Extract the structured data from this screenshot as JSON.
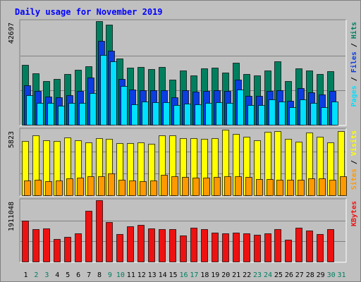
{
  "chart_data": {
    "type": "bar",
    "title": "Daily usage for November 2019",
    "categories": [
      "1",
      "2",
      "3",
      "4",
      "5",
      "6",
      "7",
      "8",
      "9",
      "10",
      "11",
      "12",
      "13",
      "14",
      "15",
      "16",
      "17",
      "18",
      "19",
      "20",
      "21",
      "22",
      "23",
      "24",
      "25",
      "26",
      "27",
      "28",
      "29",
      "30",
      "31"
    ],
    "weekend_days": [
      "2",
      "3",
      "9",
      "10",
      "16",
      "17",
      "23",
      "24",
      "30",
      "31"
    ],
    "colors": {
      "hits": "#007f5f",
      "files": "#0b3de0",
      "pages": "#00e0ff",
      "visits": "#ffff00",
      "sites": "#ff9900",
      "kbytes": "#ee1111",
      "title": "#0000ff",
      "weekday_label": "#000000",
      "weekend_label": "#007f5f"
    },
    "panels": [
      {
        "id": "hits-files-pages",
        "scale_label": "42697",
        "ylim": [
          0,
          42697
        ],
        "right_labels": [
          {
            "text": "Hits",
            "color": "#007f5f"
          },
          {
            "text": " / ",
            "color": "#000000"
          },
          {
            "text": "Files",
            "color": "#0b3de0"
          },
          {
            "text": " / ",
            "color": "#000000"
          },
          {
            "text": "Pages",
            "color": "#00e0ff"
          }
        ],
        "series": [
          {
            "name": "Hits",
            "values": [
              24600,
              21200,
              18100,
              19000,
              20900,
              22600,
              24000,
              42697,
              41100,
              27300,
              23500,
              23700,
              22900,
              23900,
              18700,
              22500,
              20200,
              23300,
              23500,
              21500,
              25700,
              20900,
              20400,
              22400,
              26000,
              18100,
              23200,
              22300,
              21000,
              22100,
              null
            ]
          },
          {
            "name": "Files",
            "values": [
              16400,
              13900,
              11700,
              11200,
              12100,
              13900,
              19500,
              34500,
              30500,
              19000,
              14400,
              14300,
              14200,
              14300,
              11200,
              14200,
              13700,
              14000,
              14100,
              14000,
              18500,
              11900,
              11900,
              13800,
              14300,
              9900,
              15100,
              13500,
              12500,
              13800,
              null
            ]
          },
          {
            "name": "Pages",
            "values": [
              12100,
              9100,
              8900,
              7800,
              9000,
              9100,
              13000,
              28900,
              26000,
              16100,
              8300,
              9500,
              9200,
              9300,
              8100,
              8700,
              8500,
              8900,
              9300,
              9000,
              14500,
              8200,
              8100,
              10400,
              9500,
              7400,
              10500,
              9100,
              7400,
              9700,
              null
            ]
          }
        ]
      },
      {
        "id": "visits-sites",
        "scale_label": "5823",
        "ylim": [
          0,
          5823
        ],
        "right_labels": [
          {
            "text": "Visits",
            "color": "#ffff00"
          },
          {
            "text": " / ",
            "color": "#000000"
          },
          {
            "text": "Sites",
            "color": "#ff9900"
          }
        ],
        "series": [
          {
            "name": "Visits",
            "values": [
              4850,
              5300,
              4900,
              4800,
              5150,
              4900,
              4700,
              5050,
              5000,
              4650,
              4650,
              4700,
              4550,
              5350,
              5300,
              5100,
              5100,
              5000,
              5100,
              5850,
              5450,
              5200,
              4900,
              5650,
              5700,
              5000,
              4750,
              5600,
              5200,
              4700,
              5700
            ]
          },
          {
            "name": "Sites",
            "values": [
              1300,
              1350,
              1250,
              1300,
              1480,
              1550,
              1720,
              1720,
              1950,
              1380,
              1300,
              1250,
              1320,
              1800,
              1720,
              1600,
              1570,
              1550,
              1600,
              1700,
              1700,
              1600,
              1430,
              1450,
              1350,
              1350,
              1400,
              1500,
              1500,
              1380,
              1720
            ]
          }
        ]
      },
      {
        "id": "kbytes",
        "scale_label": "1911048",
        "ylim": [
          0,
          1911048
        ],
        "right_labels": [
          {
            "text": "KBytes",
            "color": "#ee1111"
          }
        ],
        "series": [
          {
            "name": "KBytes",
            "values": [
              1275000,
              1000000,
              1030000,
              710000,
              760000,
              880000,
              1580000,
              1911048,
              1230000,
              860000,
              1090000,
              1150000,
              1040000,
              1000000,
              1000000,
              810000,
              1050000,
              1010000,
              900000,
              870000,
              910000,
              870000,
              840000,
              870000,
              1010000,
              690000,
              1050000,
              970000,
              860000,
              1000000,
              null
            ]
          }
        ]
      }
    ]
  }
}
